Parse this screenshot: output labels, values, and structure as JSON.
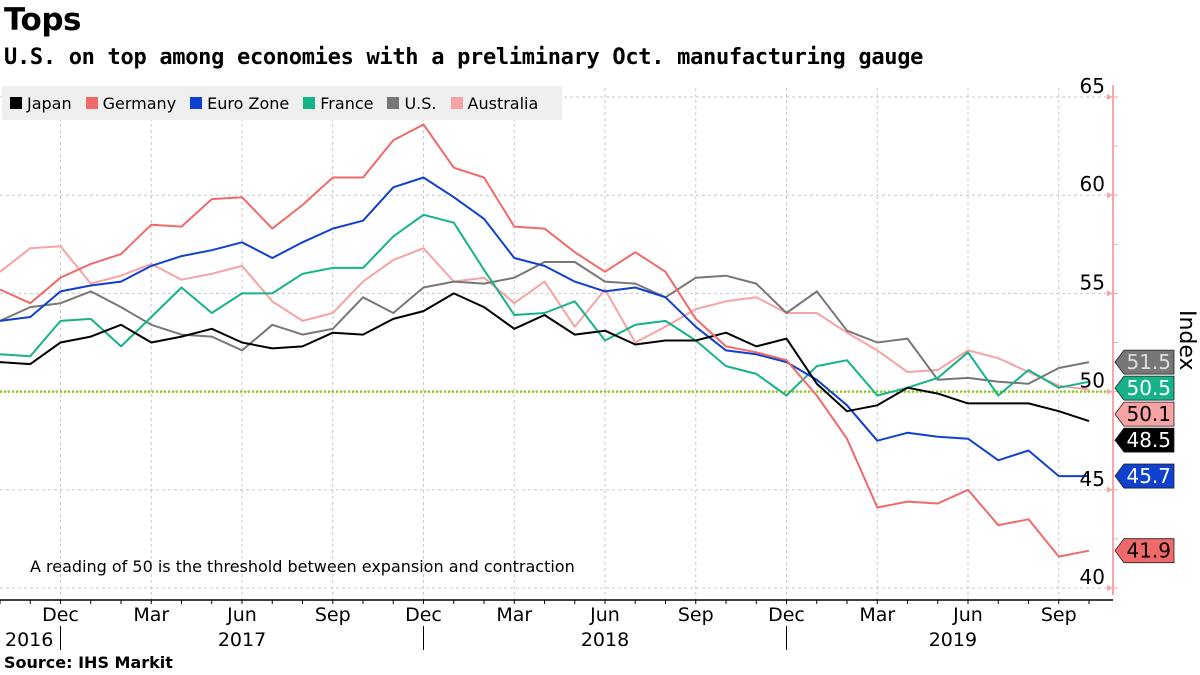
{
  "header": {
    "title": "Tops",
    "subtitle": "U.S. on top among economies with a preliminary Oct. manufacturing gauge"
  },
  "footer": {
    "source": "Source: IHS Markit"
  },
  "chart_data": {
    "type": "line",
    "title": "Tops",
    "subtitle": "U.S. on top among economies with a preliminary Oct. manufacturing gauge",
    "ylabel": "Index",
    "xlabel": "",
    "ylim": [
      40,
      65
    ],
    "yticks": [
      "65",
      "60",
      "55",
      "50",
      "45",
      "40"
    ],
    "grid": true,
    "legend_position": "top-left",
    "annotation": "A reading of 50 is the threshold between expansion and contraction",
    "threshold": {
      "value": 50,
      "color": "#8fd11a"
    },
    "x": [
      "2016-10",
      "2016-11",
      "2016-12",
      "2017-01",
      "2017-02",
      "2017-03",
      "2017-04",
      "2017-05",
      "2017-06",
      "2017-07",
      "2017-08",
      "2017-09",
      "2017-10",
      "2017-11",
      "2017-12",
      "2018-01",
      "2018-02",
      "2018-03",
      "2018-04",
      "2018-05",
      "2018-06",
      "2018-07",
      "2018-08",
      "2018-09",
      "2018-10",
      "2018-11",
      "2018-12",
      "2019-01",
      "2019-02",
      "2019-03",
      "2019-04",
      "2019-05",
      "2019-06",
      "2019-07",
      "2019-08",
      "2019-09",
      "2019-10"
    ],
    "x_month_labels": [
      {
        "month": "2016-12",
        "label": "Dec"
      },
      {
        "month": "2017-03",
        "label": "Mar"
      },
      {
        "month": "2017-06",
        "label": "Jun"
      },
      {
        "month": "2017-09",
        "label": "Sep"
      },
      {
        "month": "2017-12",
        "label": "Dec"
      },
      {
        "month": "2018-03",
        "label": "Mar"
      },
      {
        "month": "2018-06",
        "label": "Jun"
      },
      {
        "month": "2018-09",
        "label": "Sep"
      },
      {
        "month": "2018-12",
        "label": "Dec"
      },
      {
        "month": "2019-03",
        "label": "Mar"
      },
      {
        "month": "2019-06",
        "label": "Jun"
      },
      {
        "month": "2019-09",
        "label": "Sep"
      }
    ],
    "x_year_labels": [
      "2016",
      "2017",
      "2018",
      "2019"
    ],
    "series": [
      {
        "name": "Japan",
        "color": "#000000",
        "tag_text_color": "#ffffff",
        "last_label": "48.5",
        "values": [
          51.5,
          51.4,
          52.5,
          52.8,
          53.4,
          52.5,
          52.8,
          53.2,
          52.5,
          52.2,
          52.3,
          53.0,
          52.9,
          53.7,
          54.1,
          55.0,
          54.3,
          53.2,
          53.9,
          52.9,
          53.1,
          52.4,
          52.6,
          52.6,
          53.0,
          52.3,
          52.7,
          50.4,
          49.0,
          49.3,
          50.2,
          49.9,
          49.4,
          49.4,
          49.4,
          49.0,
          48.5
        ]
      },
      {
        "name": "Germany",
        "color": "#f06a6a",
        "tag_text_color": "#000000",
        "last_label": "41.9",
        "values": [
          55.2,
          54.5,
          55.8,
          56.5,
          57.0,
          58.5,
          58.4,
          59.8,
          59.9,
          58.3,
          59.5,
          60.9,
          60.9,
          62.8,
          63.6,
          61.4,
          60.9,
          58.4,
          58.3,
          57.1,
          56.1,
          57.1,
          56.1,
          53.7,
          52.3,
          52.0,
          51.6,
          49.8,
          47.6,
          44.1,
          44.4,
          44.3,
          45.0,
          43.2,
          43.5,
          41.6,
          41.9
        ]
      },
      {
        "name": "Euro Zone",
        "color": "#1040cf",
        "tag_text_color": "#ffffff",
        "last_label": "45.7",
        "values": [
          53.6,
          53.8,
          55.1,
          55.4,
          55.6,
          56.4,
          56.9,
          57.2,
          57.6,
          56.8,
          57.6,
          58.3,
          58.7,
          60.4,
          60.9,
          59.9,
          58.8,
          56.8,
          56.4,
          55.6,
          55.1,
          55.3,
          54.8,
          53.3,
          52.1,
          51.9,
          51.5,
          50.6,
          49.3,
          47.5,
          47.9,
          47.7,
          47.6,
          46.5,
          47.0,
          45.7,
          45.7
        ]
      },
      {
        "name": "France",
        "color": "#16b38b",
        "tag_text_color": "#ffffff",
        "last_label": "50.5",
        "values": [
          51.9,
          51.8,
          53.6,
          53.7,
          52.3,
          53.8,
          55.3,
          54.0,
          55.0,
          55.0,
          56.0,
          56.3,
          56.3,
          57.9,
          59.0,
          58.6,
          56.2,
          53.9,
          54.0,
          54.6,
          52.6,
          53.4,
          53.6,
          52.6,
          51.3,
          50.9,
          49.8,
          51.3,
          51.6,
          49.8,
          50.2,
          50.7,
          52.0,
          49.8,
          51.1,
          50.2,
          50.5
        ]
      },
      {
        "name": "U.S.",
        "color": "#777777",
        "tag_text_color": "#dddddd",
        "last_label": "51.5",
        "values": [
          53.6,
          54.3,
          54.5,
          55.1,
          54.3,
          53.4,
          52.9,
          52.8,
          52.1,
          53.4,
          52.9,
          53.2,
          54.8,
          54.0,
          55.3,
          55.6,
          55.5,
          55.8,
          56.6,
          56.6,
          55.6,
          55.5,
          54.8,
          55.8,
          55.9,
          55.5,
          54.0,
          55.1,
          53.1,
          52.5,
          52.7,
          50.6,
          50.7,
          50.5,
          50.4,
          51.2,
          51.5
        ]
      },
      {
        "name": "Australia",
        "color": "#f8a3a3",
        "tag_text_color": "#000000",
        "last_label": "50.1",
        "values": [
          56.1,
          57.3,
          57.4,
          55.5,
          55.9,
          56.5,
          55.7,
          56.0,
          56.4,
          54.6,
          53.6,
          54.0,
          55.6,
          56.7,
          57.3,
          55.6,
          55.8,
          54.5,
          55.6,
          53.3,
          55.2,
          52.5,
          53.3,
          54.2,
          54.6,
          54.8,
          54.0,
          54.0,
          53.0,
          52.1,
          51.0,
          51.1,
          52.1,
          51.7,
          51.0,
          50.3,
          50.1
        ]
      }
    ]
  }
}
